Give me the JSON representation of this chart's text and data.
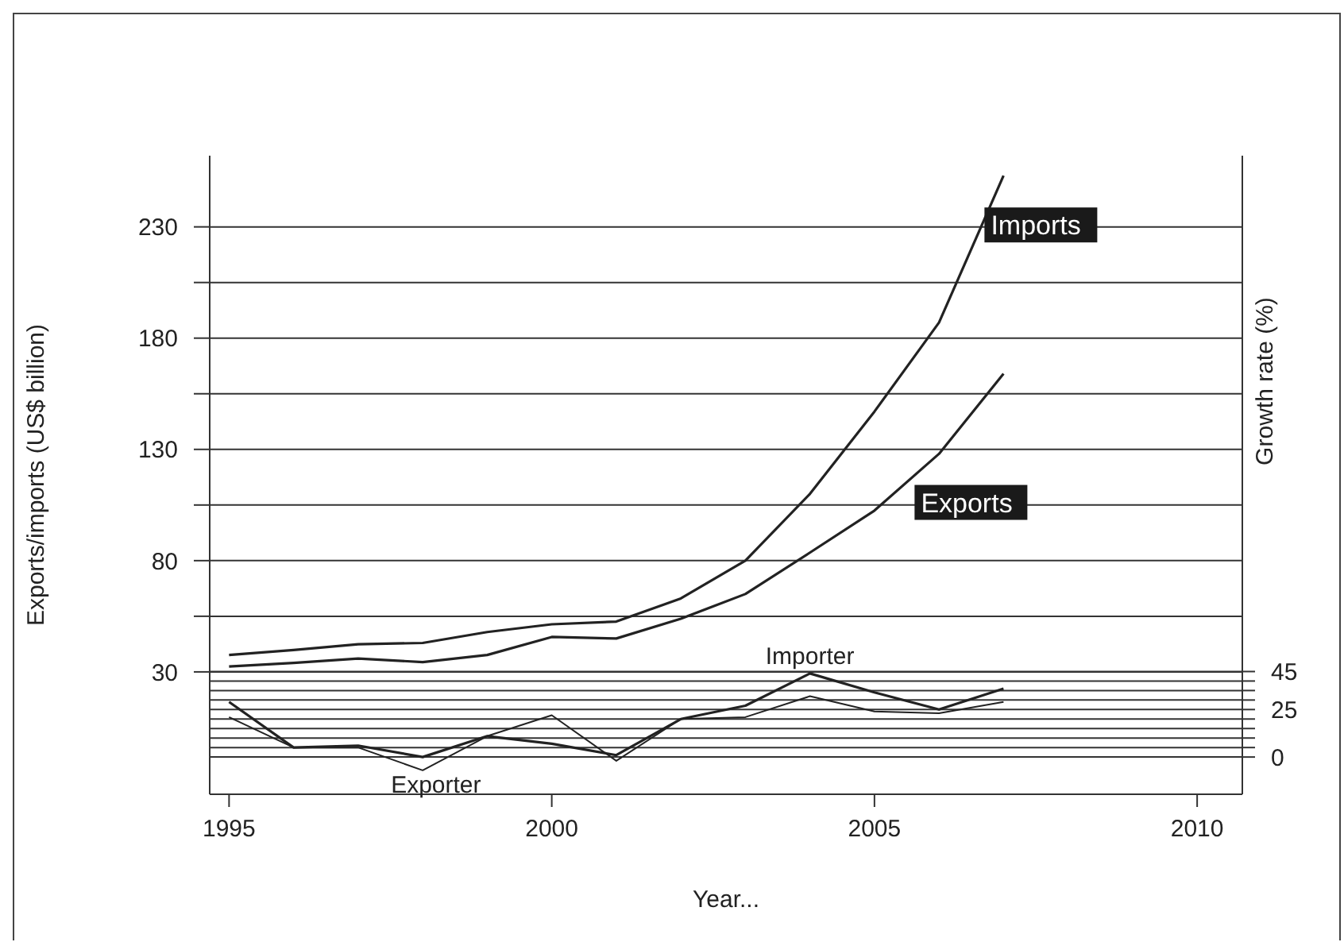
{
  "chart_data": {
    "type": "line",
    "xlabel": "Year...",
    "ylabel": "Exports/imports (US$ billion)",
    "y2label": "Growth rate (%)",
    "x": [
      1995,
      1996,
      1997,
      1998,
      1999,
      2000,
      2001,
      2002,
      2003,
      2004,
      2005,
      2006,
      2007
    ],
    "xlim": [
      1994.7,
      2010.7
    ],
    "xticks": [
      1995,
      2000,
      2005,
      2010
    ],
    "ylim": [
      -25,
      262
    ],
    "yticks": [
      30,
      {
        "value": 55,
        "label": null
      },
      80,
      {
        "value": 105,
        "label": null
      },
      130,
      {
        "value": 155,
        "label": null
      },
      180,
      {
        "value": 205,
        "label": null
      },
      230
    ],
    "y2lim": [
      -19.6,
      316.5
    ],
    "y2ticks": [
      0,
      {
        "value": 5,
        "label": null
      },
      {
        "value": 10,
        "label": null
      },
      {
        "value": 15,
        "label": null
      },
      {
        "value": 20,
        "label": null
      },
      25,
      {
        "value": 30,
        "label": null
      },
      {
        "value": 35,
        "label": null
      },
      {
        "value": 40,
        "label": null
      },
      45
    ],
    "grid": true,
    "marker": "none",
    "line_style": "solid",
    "series": [
      {
        "name": "Imports",
        "color": "#222222",
        "values": [
          37.6,
          39.8,
          42.4,
          43,
          47.9,
          51.4,
          52.6,
          63,
          80,
          110,
          147,
          187,
          253
        ]
      },
      {
        "name": "Exports",
        "color": "#222222",
        "values": [
          32.4,
          34,
          36,
          34.4,
          37.6,
          45.7,
          45,
          53.9,
          65,
          83.6,
          102.5,
          128,
          164
        ]
      },
      {
        "name": "Importer",
        "color": "#222222",
        "axis": "y2",
        "values": [
          29,
          5,
          6,
          0,
          11,
          7,
          1,
          20,
          27,
          44,
          34,
          25,
          36
        ]
      },
      {
        "name": "Exporter",
        "color": "#222222",
        "axis": "y2",
        "values": [
          21,
          5,
          5,
          -7,
          11,
          22,
          -2,
          20,
          21,
          32,
          24,
          23,
          29
        ]
      }
    ]
  }
}
